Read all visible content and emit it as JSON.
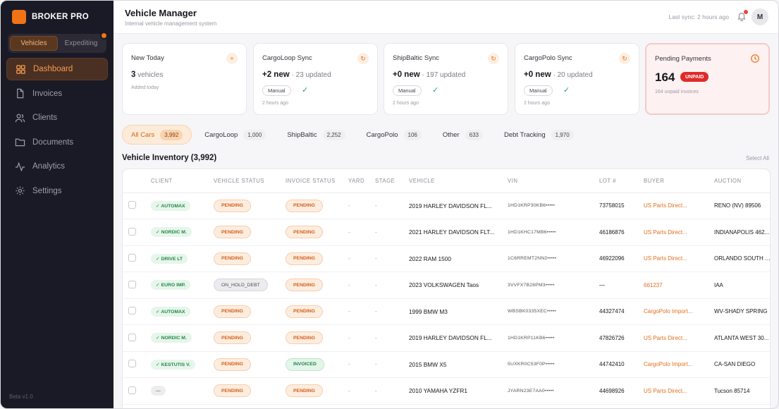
{
  "brand": {
    "name": "BROKER PRO"
  },
  "mode_switch": {
    "options": [
      "Vehicles",
      "Expediting"
    ],
    "active": 0
  },
  "nav": {
    "items": [
      {
        "label": "Dashboard",
        "icon": "grid-icon",
        "active": true
      },
      {
        "label": "Invoices",
        "icon": "file-icon",
        "active": false
      },
      {
        "label": "Clients",
        "icon": "users-icon",
        "active": false
      },
      {
        "label": "Documents",
        "icon": "folder-icon",
        "active": false
      },
      {
        "label": "Analytics",
        "icon": "activity-icon",
        "active": false
      },
      {
        "label": "Settings",
        "icon": "gear-icon",
        "active": false
      }
    ]
  },
  "footer": {
    "version": "Beta v1.0"
  },
  "header": {
    "title": "Vehicle Manager",
    "subtitle": "Internal vehicle management system",
    "last_sync": "Last sync: 2 hours ago",
    "avatar": "M"
  },
  "cards": {
    "new_today": {
      "title": "New Today",
      "value": "3",
      "unit": "vehicles",
      "meta": "Added today",
      "badge": "+"
    },
    "cargoloop": {
      "title": "CargoLoop Sync",
      "value": "+2 new",
      "detail": "· 23 updated",
      "chip": "Manual",
      "check": "✓",
      "time": "2 hours ago",
      "badge": "↻"
    },
    "shipbaltic": {
      "title": "ShipBaltic Sync",
      "value": "+0 new",
      "detail": "· 197 updated",
      "chip": "Manual",
      "check": "✓",
      "time": "2 hours ago",
      "badge": "↻"
    },
    "cargopolo": {
      "title": "CargoPolo Sync",
      "value": "+0 new",
      "detail": "· 20 updated",
      "chip": "Manual",
      "check": "✓",
      "time": "2 hours ago",
      "badge": "↻"
    },
    "pending": {
      "title": "Pending Payments",
      "value": "164",
      "badge": "UNPAID",
      "meta": "164 unpaid invoices"
    }
  },
  "filters": [
    {
      "label": "All Cars",
      "count": "3,992",
      "active": true
    },
    {
      "label": "CargoLoop",
      "count": "1,000",
      "active": false
    },
    {
      "label": "ShipBaltic",
      "count": "2,252",
      "active": false
    },
    {
      "label": "CargoPolo",
      "count": "106",
      "active": false
    },
    {
      "label": "Other",
      "count": "633",
      "active": false
    },
    {
      "label": "Debt Tracking",
      "count": "1,970",
      "active": false
    }
  ],
  "inventory": {
    "title": "Vehicle Inventory (3,992)",
    "select_all": "Select All",
    "columns": [
      "CLIENT",
      "VEHICLE STATUS",
      "INVOICE STATUS",
      "YARD",
      "STAGE",
      "VEHICLE",
      "VIN",
      "LOT #",
      "BUYER",
      "AUCTION"
    ],
    "rows": [
      {
        "client": "✓ AUTOMAX",
        "vstatus": "PENDING",
        "istatus": "PENDING",
        "yard": "-",
        "stage": "-",
        "vehicle": "2019 HARLEY DAVIDSON FL...",
        "vin": "1HD1KRP30KB6•••••",
        "lot": "73758015",
        "buyer": "US Parts Direct...",
        "auction": "RENO (NV) 89506"
      },
      {
        "client": "✓ NORDIC M.",
        "vstatus": "PENDING",
        "istatus": "PENDING",
        "yard": "-",
        "stage": "-",
        "vehicle": "2021 HARLEY DAVIDSON FLT...",
        "vin": "1HD1KHC17MB6•••••",
        "lot": "46186876",
        "buyer": "US Parts Direct...",
        "auction": "INDIANAPOLIS 462..."
      },
      {
        "client": "✓ DRIVE LT",
        "vstatus": "PENDING",
        "istatus": "PENDING",
        "yard": "-",
        "stage": "-",
        "vehicle": "2022 RAM 1500",
        "vin": "1C6RREMT2NN2•••••",
        "lot": "46922096",
        "buyer": "US Parts Direct...",
        "auction": "ORLANDO SOUTH (..."
      },
      {
        "client": "✓ EURO IMP.",
        "vstatus": "ON_HOLD_DEBT",
        "istatus": "PENDING",
        "yard": "-",
        "stage": "-",
        "vehicle": "2023 VOLKSWAGEN Taos",
        "vin": "3VVFX7B28PM3•••••",
        "lot": "—",
        "buyer": "661237",
        "auction": "IAA"
      },
      {
        "client": "✓ AUTOMAX",
        "vstatus": "PENDING",
        "istatus": "PENDING",
        "yard": "-",
        "stage": "-",
        "vehicle": "1999 BMW M3",
        "vin": "WBSBK0335XEC•••••",
        "lot": "44327474",
        "buyer": "CargoPolo Import...",
        "auction": "WV-SHADY SPRING"
      },
      {
        "client": "✓ NORDIC M.",
        "vstatus": "PENDING",
        "istatus": "PENDING",
        "yard": "-",
        "stage": "-",
        "vehicle": "2019 HARLEY DAVIDSON FL...",
        "vin": "1HD1KRP11KB6•••••",
        "lot": "47826726",
        "buyer": "US Parts Direct...",
        "auction": "ATLANTA WEST 30..."
      },
      {
        "client": "✓ KESTUTIS V.",
        "vstatus": "PENDING",
        "istatus": "INVOICED",
        "yard": "-",
        "stage": "-",
        "vehicle": "2015 BMW X5",
        "vin": "5UXKR0C53F0P•••••",
        "lot": "44742410",
        "buyer": "CargoPolo Import...",
        "auction": "CA-SAN DIEGO"
      },
      {
        "client": "—",
        "vstatus": "PENDING",
        "istatus": "PENDING",
        "yard": "-",
        "stage": "-",
        "vehicle": "2010 YAMAHA YZFR1",
        "vin": "JYARN23E7AA0•••••",
        "lot": "44698926",
        "buyer": "US Parts Direct...",
        "auction": "Tucson 85714"
      }
    ]
  },
  "colors": {
    "accent": "#f07316",
    "sidebar": "#1a1a26",
    "success": "#23874a",
    "danger": "#e02a2a"
  }
}
